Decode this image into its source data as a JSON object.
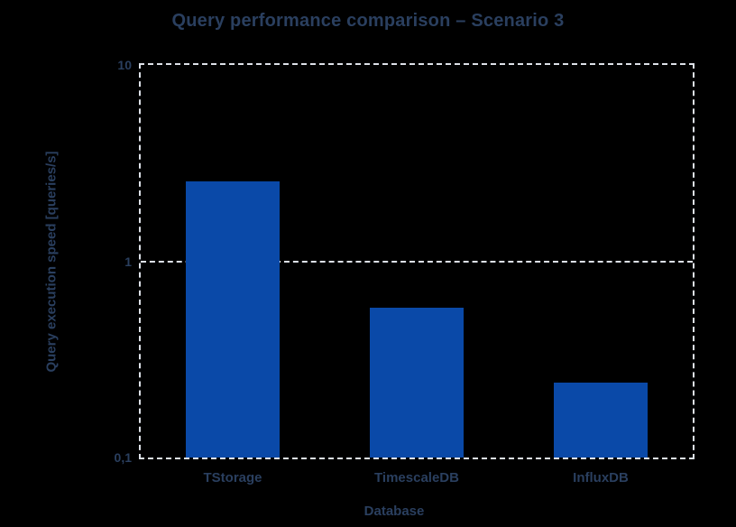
{
  "figure": {
    "title": "Query performance comparison – Scenario 3"
  },
  "colors": {
    "background": "#000000",
    "text": "#2a3f5f",
    "bar": "#0a49a8",
    "grid": "#dde1e8"
  },
  "chart_data": {
    "type": "bar",
    "title": "Query performance comparison – Scenario 3",
    "xlabel": "Database",
    "ylabel": "Query execution speed [queries/s]",
    "categories": [
      "TStorage",
      "TimescaleDB",
      "InfluxDB"
    ],
    "values": [
      2.55,
      0.58,
      0.24
    ],
    "yscale": "log",
    "ylim": [
      0.1,
      10
    ],
    "yticks": [
      {
        "value": 10,
        "label": "10"
      },
      {
        "value": 1,
        "label": "1"
      },
      {
        "value": 0.1,
        "label": "0,1"
      }
    ],
    "grid": {
      "horizontal_gridlines": true,
      "line_style": "dashed",
      "plot_border": "dashed"
    },
    "legend": "none",
    "bar_color": "#0a49a8"
  }
}
